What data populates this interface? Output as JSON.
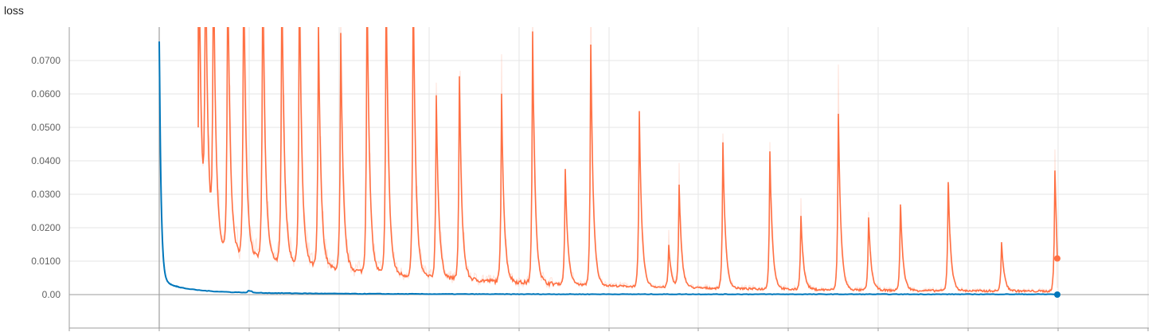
{
  "chart_data": {
    "type": "line",
    "title": "loss",
    "ylim": [
      -0.01,
      0.08
    ],
    "y_ticks": [
      "0.00",
      "0.0100",
      "0.0200",
      "0.0300",
      "0.0400",
      "0.0500",
      "0.0600",
      "0.0700"
    ],
    "grid": true,
    "series": [
      {
        "color": "#ff7043",
        "smoothed_values_end": 0.0108,
        "peak_values": [
          0.0544,
          0.0605,
          0.0563,
          0.0748,
          0.0344,
          0.072,
          0.0522,
          0.0125,
          0.0303,
          0.0435,
          0.0411,
          0.0223,
          0.0526,
          0.022,
          0.0258,
          0.0327,
          0.0148,
          0.036
        ],
        "baseline_values": [
          0.01,
          0.0075,
          0.0035,
          0.0025,
          0.0018,
          0.0012,
          0.001,
          0.0008
        ]
      },
      {
        "color": "#0077bb",
        "start_value": 0.0757,
        "values": [
          0.0757,
          0.03,
          0.01,
          0.004,
          0.002,
          0.0012,
          0.0008,
          0.0005,
          0.0003,
          0.0002,
          0.0001,
          0.0
        ]
      }
    ]
  }
}
